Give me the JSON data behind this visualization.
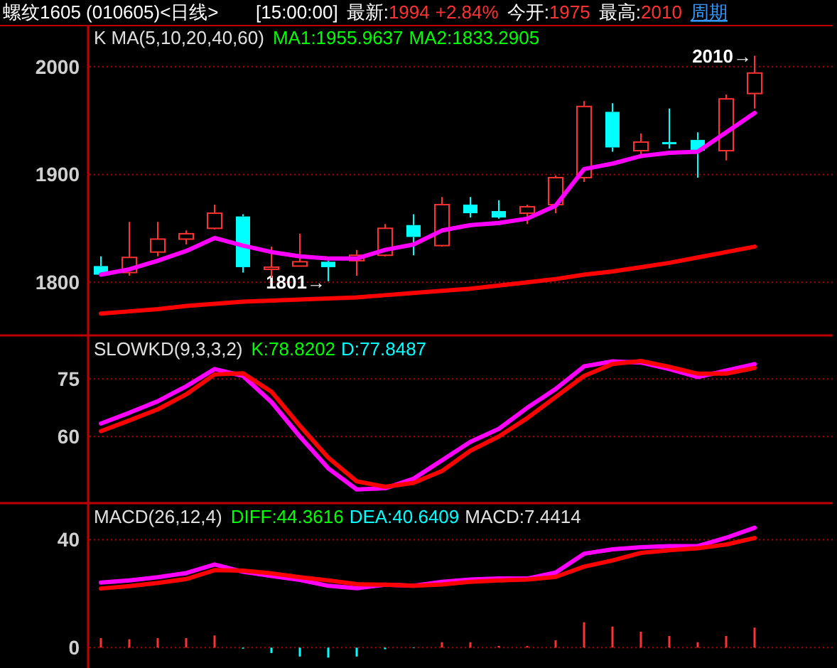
{
  "chart_data": [
    {
      "type": "candlestick",
      "title": "螺纹1605 (010605)<日线>",
      "subtitle": "K  MA(5,10,20,40,60)",
      "categories": [
        null,
        null,
        null,
        null,
        null,
        null,
        null,
        null,
        null,
        null,
        null,
        null,
        null,
        null,
        null,
        null,
        null,
        null,
        null,
        null,
        null,
        null,
        null,
        null
      ],
      "ohlc": [
        [
          1815,
          1824,
          1807,
          1807
        ],
        [
          1809,
          1856,
          1806,
          1823
        ],
        [
          1828,
          1856,
          1824,
          1840
        ],
        [
          1840,
          1848,
          1835,
          1845
        ],
        [
          1850,
          1872,
          1849,
          1864
        ],
        [
          1861,
          1863,
          1809,
          1814
        ],
        [
          1813,
          1833,
          1804,
          1814
        ],
        [
          1815,
          1845,
          1815,
          1819
        ],
        [
          1819,
          1820,
          1801,
          1814
        ],
        [
          1820,
          1830,
          1806,
          1825
        ],
        [
          1825,
          1854,
          1824,
          1850
        ],
        [
          1853,
          1863,
          1825,
          1842
        ],
        [
          1834,
          1879,
          1833,
          1872
        ],
        [
          1872,
          1879,
          1860,
          1864
        ],
        [
          1866,
          1876,
          1859,
          1860
        ],
        [
          1864,
          1872,
          1854,
          1870
        ],
        [
          1872,
          1899,
          1864,
          1897
        ],
        [
          1897,
          1968,
          1893,
          1963
        ],
        [
          1958,
          1966,
          1921,
          1925
        ],
        [
          1922,
          1938,
          1918,
          1930
        ],
        [
          1930,
          1961,
          1924,
          1928
        ],
        [
          1932,
          1939,
          1897,
          1922
        ],
        [
          1922,
          1974,
          1913,
          1970
        ],
        [
          1975,
          2010,
          1961,
          1994
        ]
      ],
      "colors": [
        "#00ffff",
        "#ff3232",
        "#ff3232",
        "#ff3232",
        "#ff3232",
        "#00ffff",
        "#ff3232",
        "#ff3232",
        "#00ffff",
        "#ff3232",
        "#ff3232",
        "#00ffff",
        "#ff3232",
        "#00ffff",
        "#00ffff",
        "#ff3232",
        "#ff3232",
        "#ff3232",
        "#00ffff",
        "#ff3232",
        "#00ffff",
        "#00ffff",
        "#ff3232",
        "#ff3232"
      ],
      "series": [
        {
          "type": "line",
          "color": "#ff00ff",
          "values": [
            1807,
            1812,
            1820,
            1829,
            1841,
            1834,
            1828,
            1824,
            1822,
            1822,
            1830,
            1835,
            1848,
            1853,
            1855,
            1859,
            1871,
            1905,
            1910,
            1917,
            1920,
            1921,
            1939,
            1957
          ]
        },
        {
          "type": "line",
          "color": "#ff0000",
          "values": [
            1771,
            1773,
            1775,
            1778,
            1780,
            1782,
            1783,
            1784,
            1785,
            1786,
            1788,
            1790,
            1792,
            1794,
            1797,
            1800,
            1803,
            1807,
            1810,
            1814,
            1818,
            1823,
            1828,
            1833
          ]
        }
      ],
      "ylim": [
        1752,
        2038
      ],
      "yticks": [
        1800,
        1900,
        2000
      ],
      "grid": "y",
      "annotations": [
        "[15:00:00]",
        "最新:",
        "1994",
        "+2.84%",
        "今开:",
        "1975",
        "最高:",
        "2010",
        "周期",
        "MA1:1955.9637",
        "MA2:1833.2905",
        "2010→",
        "1801→"
      ]
    },
    {
      "type": "line",
      "title": "SLOWKD(9,3,3,2)",
      "categories": [
        null,
        null,
        null,
        null,
        null,
        null,
        null,
        null,
        null,
        null,
        null,
        null,
        null,
        null,
        null,
        null,
        null,
        null,
        null,
        null,
        null,
        null,
        null,
        null
      ],
      "series": [
        {
          "color": "#ff00ff",
          "values": [
            63.4,
            66.2,
            69.2,
            73.1,
            77.6,
            75.8,
            69,
            60,
            51.7,
            46.2,
            46.5,
            49,
            53.8,
            58.6,
            62,
            67.5,
            72.4,
            78.3,
            79.6,
            79.3,
            77.6,
            75.5,
            77.2,
            78.9
          ]
        },
        {
          "color": "#ff0000",
          "values": [
            61.4,
            64.2,
            67.1,
            71,
            76.2,
            76.5,
            71.7,
            62.8,
            54.5,
            48.3,
            46.9,
            47.9,
            51,
            56.3,
            60,
            64.8,
            70.3,
            75.8,
            78.9,
            79.7,
            78.2,
            76.4,
            76.4,
            77.9
          ]
        }
      ],
      "ylim": [
        43,
        86
      ],
      "yticks": [
        60,
        75
      ],
      "grid": "y",
      "annotations": [
        "K:78.8202",
        "D:77.8487"
      ]
    },
    {
      "type": "line",
      "title": "MACD(26,12,4)",
      "categories": [
        null,
        null,
        null,
        null,
        null,
        null,
        null,
        null,
        null,
        null,
        null,
        null,
        null,
        null,
        null,
        null,
        null,
        null,
        null,
        null,
        null,
        null,
        null,
        null
      ],
      "series": [
        {
          "color": "#ff00ff",
          "values": [
            24.1,
            24.9,
            26.1,
            27.6,
            30.8,
            28.1,
            26.5,
            25.1,
            22.9,
            22.0,
            23.3,
            22.9,
            24.4,
            25.2,
            25.6,
            25.6,
            27.8,
            34.8,
            36.4,
            37.2,
            37.6,
            37.6,
            40.7,
            44.4
          ]
        },
        {
          "color": "#ff0000",
          "values": [
            21.9,
            22.8,
            24.0,
            25.4,
            28.7,
            28.5,
            27.5,
            26.1,
            24.9,
            23.5,
            23.3,
            22.9,
            23.4,
            24.4,
            24.9,
            25.2,
            26.2,
            30.0,
            32.3,
            35.1,
            36.1,
            36.8,
            38.2,
            40.6
          ]
        },
        {
          "type": "bar",
          "values": [
            3.5,
            3.1,
            3.5,
            3.5,
            4.5,
            -0.4,
            -2.0,
            -3.3,
            -3.7,
            -3.3,
            -0.6,
            -0.2,
            2.0,
            2.0,
            0.6,
            0.6,
            2.7,
            9.4,
            7.8,
            5.9,
            4.3,
            2.0,
            4.3,
            7.4
          ],
          "colors": [
            "#ff3232",
            "#ff3232",
            "#ff3232",
            "#ff3232",
            "#ff3232",
            "#00ffff",
            "#00ffff",
            "#00ffff",
            "#00ffff",
            "#00ffff",
            "#00ffff",
            "#00ffff",
            "#ff3232",
            "#ff3232",
            "#ff3232",
            "#ff3232",
            "#ff3232",
            "#ff3232",
            "#ff3232",
            "#ff3232",
            "#ff3232",
            "#ff3232",
            "#ff3232",
            "#ff3232"
          ]
        }
      ],
      "ylim": [
        -6.5,
        53
      ],
      "yticks": [
        0,
        40
      ],
      "grid": "y",
      "annotations": [
        "DIFF:44.3616",
        "DEA:40.6409",
        "MACD:7.4414"
      ]
    }
  ]
}
